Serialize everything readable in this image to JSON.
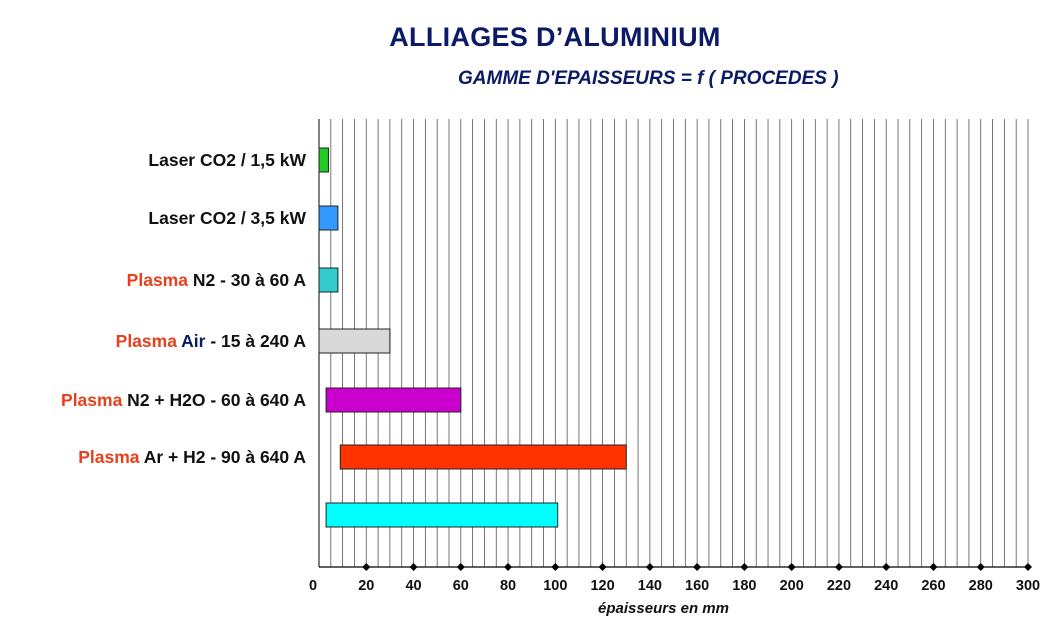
{
  "title": "ALLIAGES D’ALUMINIUM",
  "subtitle": "GAMME D'EPAISSEURS = f ( PROCEDES )",
  "chart_data": {
    "type": "bar",
    "orientation": "horizontal",
    "xlabel": "épaisseurs en mm",
    "xlim": [
      0,
      300
    ],
    "xticks": [
      0,
      20,
      40,
      60,
      80,
      100,
      120,
      140,
      160,
      180,
      200,
      220,
      240,
      260,
      280,
      300
    ],
    "grid": true,
    "rows": [
      {
        "parts": [
          {
            "text": "Laser CO2 / 1,5 kW",
            "style": "normal"
          }
        ],
        "start": 0,
        "end": 4,
        "color": "#22cc22"
      },
      {
        "parts": [
          {
            "text": "Laser CO2 / 3,5 kW",
            "style": "normal"
          }
        ],
        "start": 0,
        "end": 8,
        "color": "#3399ff"
      },
      {
        "parts": [
          {
            "text": "Plasma",
            "style": "hl"
          },
          {
            "text": " N2 - 30 à 60 A",
            "style": "normal"
          }
        ],
        "start": 0,
        "end": 8,
        "color": "#33cccc"
      },
      {
        "parts": [
          {
            "text": "Plasma",
            "style": "hl"
          },
          {
            "text": " Air",
            "style": "hl2"
          },
          {
            "text": " - 15 à 240 A",
            "style": "normal"
          }
        ],
        "start": 0,
        "end": 30,
        "color": "#d9d9d9"
      },
      {
        "parts": [
          {
            "text": "Plasma",
            "style": "hl"
          },
          {
            "text": " N2 + H2O - 60 à 640 A",
            "style": "normal"
          }
        ],
        "start": 3,
        "end": 60,
        "color": "#cc00cc"
      },
      {
        "parts": [
          {
            "text": "Plasma",
            "style": "hl"
          },
          {
            "text": " Ar + H2 - 90 à 640 A",
            "style": "normal"
          }
        ],
        "start": 9,
        "end": 130,
        "color": "#ff3300"
      },
      {
        "parts": [],
        "start": 3,
        "end": 101,
        "color": "#00ffff"
      }
    ]
  }
}
